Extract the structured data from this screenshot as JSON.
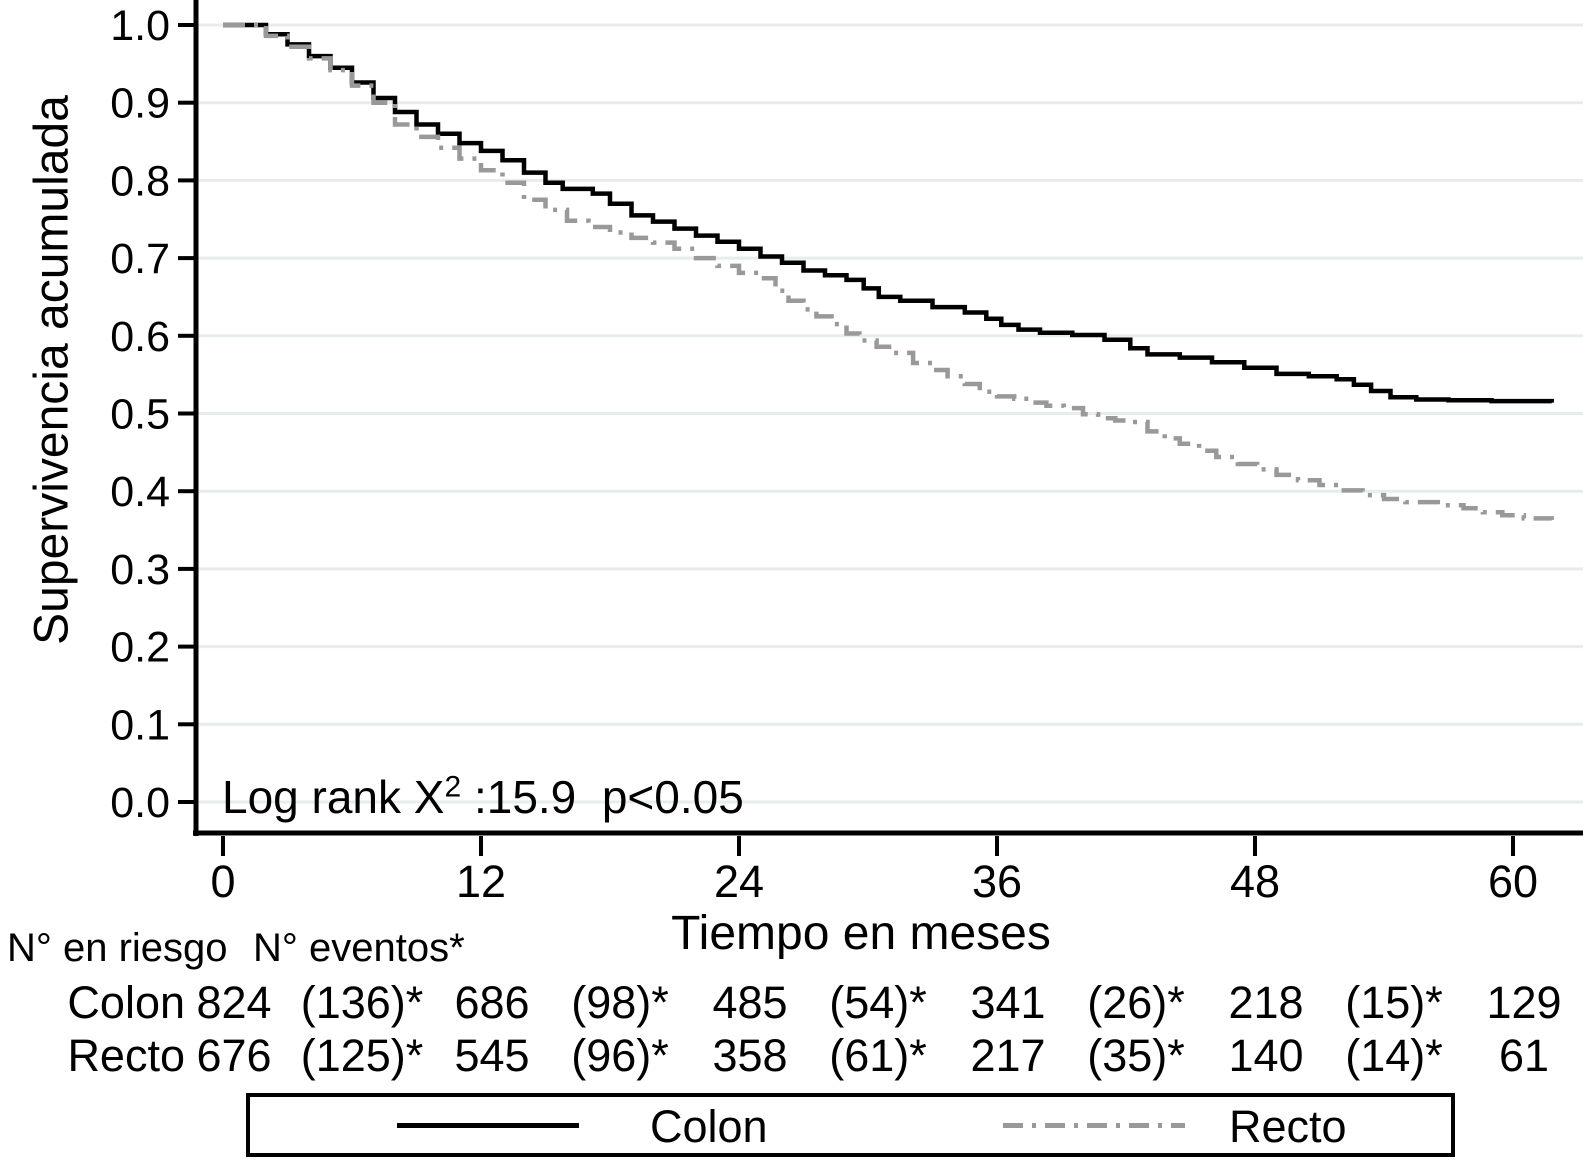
{
  "figure": {
    "y_axis_label": "Supervivencia acumulada",
    "x_axis_label": "Tiempo en meses",
    "annotation": {
      "prefix": "Log rank X",
      "sup": "2",
      "suffix": " :15.9  p<0.05"
    },
    "risk_table": {
      "header_risk": "N° en riesgo",
      "header_events": "N° eventos*"
    },
    "legend": {
      "colon_label": "Colon",
      "recto_label": "Recto"
    },
    "colors": {
      "colon": "#000000",
      "recto": "#999999",
      "gridline": "#e7edec",
      "axis": "#000000"
    }
  },
  "chart_data": {
    "type": "line",
    "subtype": "kaplan-meier-step",
    "title": "",
    "xlabel": "Tiempo en meses",
    "ylabel": "Supervivencia acumulada",
    "xlim": [
      0,
      63
    ],
    "ylim": [
      0.0,
      1.0
    ],
    "x_ticks": [
      0,
      12,
      24,
      36,
      48,
      60
    ],
    "y_ticks": [
      "0.0",
      "0.1",
      "0.2",
      "0.3",
      "0.4",
      "0.5",
      "0.6",
      "0.7",
      "0.8",
      "0.9",
      "1.0"
    ],
    "grid": "horizontal",
    "legend_position": "bottom",
    "annotation": "Log rank X² :15.9  p<0.05",
    "series": [
      {
        "name": "Colon",
        "color": "#000000",
        "style": "solid",
        "points": [
          [
            0,
            1.0
          ],
          [
            1.3,
            1.0
          ],
          [
            2,
            0.988
          ],
          [
            3,
            0.975
          ],
          [
            4,
            0.96
          ],
          [
            5,
            0.945
          ],
          [
            6,
            0.926
          ],
          [
            7,
            0.906
          ],
          [
            8,
            0.888
          ],
          [
            9,
            0.872
          ],
          [
            10,
            0.86
          ],
          [
            11,
            0.848
          ],
          [
            12,
            0.838
          ],
          [
            13,
            0.826
          ],
          [
            14,
            0.81
          ],
          [
            15,
            0.797
          ],
          [
            15.8,
            0.789
          ],
          [
            17.2,
            0.783
          ],
          [
            18,
            0.77
          ],
          [
            19,
            0.755
          ],
          [
            20,
            0.747
          ],
          [
            21,
            0.738
          ],
          [
            22,
            0.729
          ],
          [
            23,
            0.721
          ],
          [
            24,
            0.712
          ],
          [
            25,
            0.702
          ],
          [
            26,
            0.694
          ],
          [
            27,
            0.684
          ],
          [
            28,
            0.678
          ],
          [
            29,
            0.672
          ],
          [
            29.8,
            0.661
          ],
          [
            30.5,
            0.65
          ],
          [
            31.5,
            0.645
          ],
          [
            33,
            0.637
          ],
          [
            34.5,
            0.63
          ],
          [
            35.5,
            0.622
          ],
          [
            36.2,
            0.614
          ],
          [
            37,
            0.608
          ],
          [
            38,
            0.604
          ],
          [
            39.5,
            0.601
          ],
          [
            41,
            0.595
          ],
          [
            42.2,
            0.584
          ],
          [
            43,
            0.576
          ],
          [
            44.5,
            0.572
          ],
          [
            46,
            0.566
          ],
          [
            47.5,
            0.559
          ],
          [
            49,
            0.551
          ],
          [
            50.5,
            0.548
          ],
          [
            51.8,
            0.544
          ],
          [
            52.6,
            0.537
          ],
          [
            53.4,
            0.529
          ],
          [
            54.3,
            0.521
          ],
          [
            55.5,
            0.518
          ],
          [
            57,
            0.517
          ],
          [
            59,
            0.516
          ],
          [
            61.8,
            0.514
          ]
        ]
      },
      {
        "name": "Recto",
        "color": "#999999",
        "style": "dash-dot",
        "points": [
          [
            0,
            1.0
          ],
          [
            1.3,
            1.0
          ],
          [
            2,
            0.986
          ],
          [
            3,
            0.972
          ],
          [
            4,
            0.957
          ],
          [
            5,
            0.942
          ],
          [
            6,
            0.922
          ],
          [
            7,
            0.9
          ],
          [
            8,
            0.872
          ],
          [
            9,
            0.856
          ],
          [
            10,
            0.842
          ],
          [
            11,
            0.828
          ],
          [
            12,
            0.813
          ],
          [
            13,
            0.797
          ],
          [
            14,
            0.775
          ],
          [
            15,
            0.762
          ],
          [
            16,
            0.748
          ],
          [
            17,
            0.74
          ],
          [
            18,
            0.733
          ],
          [
            19,
            0.726
          ],
          [
            20,
            0.72
          ],
          [
            21,
            0.712
          ],
          [
            22,
            0.7
          ],
          [
            23,
            0.69
          ],
          [
            24,
            0.681
          ],
          [
            25,
            0.674
          ],
          [
            25.7,
            0.658
          ],
          [
            26.3,
            0.645
          ],
          [
            27,
            0.634
          ],
          [
            27.6,
            0.625
          ],
          [
            28.3,
            0.615
          ],
          [
            29,
            0.603
          ],
          [
            29.6,
            0.594
          ],
          [
            30.4,
            0.586
          ],
          [
            31.2,
            0.578
          ],
          [
            32.1,
            0.565
          ],
          [
            33,
            0.556
          ],
          [
            33.7,
            0.548
          ],
          [
            34.5,
            0.538
          ],
          [
            35.2,
            0.528
          ],
          [
            36,
            0.522
          ],
          [
            36.8,
            0.519
          ],
          [
            37.5,
            0.514
          ],
          [
            38.3,
            0.51
          ],
          [
            39.1,
            0.507
          ],
          [
            40,
            0.499
          ],
          [
            40.7,
            0.494
          ],
          [
            41.5,
            0.491
          ],
          [
            42.2,
            0.489
          ],
          [
            43,
            0.477
          ],
          [
            43.8,
            0.468
          ],
          [
            44.5,
            0.461
          ],
          [
            45.4,
            0.452
          ],
          [
            46.2,
            0.444
          ],
          [
            47.2,
            0.435
          ],
          [
            48.1,
            0.428
          ],
          [
            49,
            0.421
          ],
          [
            50,
            0.414
          ],
          [
            51,
            0.408
          ],
          [
            52,
            0.401
          ],
          [
            53,
            0.395
          ],
          [
            54,
            0.39
          ],
          [
            55,
            0.386
          ],
          [
            56.5,
            0.382
          ],
          [
            57.7,
            0.378
          ],
          [
            58.6,
            0.373
          ],
          [
            59.5,
            0.369
          ],
          [
            60.5,
            0.365
          ],
          [
            61.8,
            0.363
          ]
        ]
      }
    ],
    "risk_table": {
      "header_risk": "N° en riesgo",
      "header_events": "N° eventos*",
      "rows": [
        {
          "label": "Colon",
          "at_risk": [
            "824",
            "686",
            "485",
            "341",
            "218",
            "129"
          ],
          "events": [
            "(136)*",
            "(98)*",
            "(54)*",
            "(26)*",
            "(15)*"
          ]
        },
        {
          "label": "Recto",
          "at_risk": [
            "676",
            "545",
            "358",
            "217",
            "140",
            "61"
          ],
          "events": [
            "(125)*",
            "(96)*",
            "(61)*",
            "(35)*",
            "(14)*"
          ]
        }
      ]
    },
    "legend": [
      {
        "label": "Colon",
        "line": "solid-black"
      },
      {
        "label": "Recto",
        "line": "dash-dot-gray"
      }
    ]
  }
}
